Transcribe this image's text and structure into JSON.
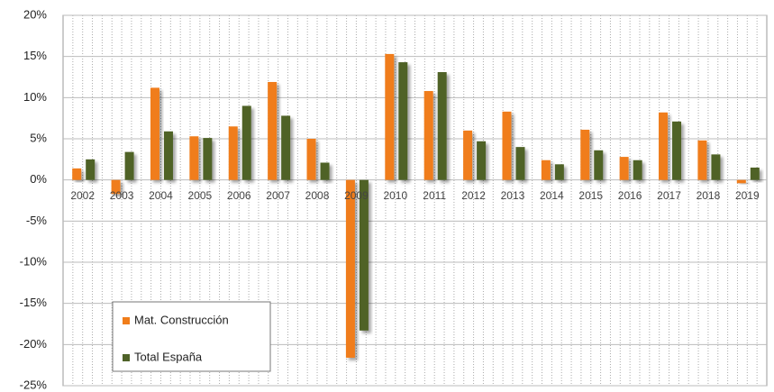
{
  "chart_data": {
    "type": "bar",
    "categories": [
      "2002",
      "2003",
      "2004",
      "2005",
      "2006",
      "2007",
      "2008",
      "2009",
      "2010",
      "2011",
      "2012",
      "2013",
      "2014",
      "2015",
      "2016",
      "2017",
      "2018",
      "2019"
    ],
    "series": [
      {
        "name": "Mat. Construcción",
        "color": "#f07d1a",
        "values": [
          1.4,
          -1.7,
          11.2,
          5.3,
          6.5,
          11.9,
          5.0,
          -21.6,
          15.3,
          10.8,
          6.0,
          8.3,
          2.4,
          6.1,
          2.8,
          8.2,
          4.8,
          -0.4
        ]
      },
      {
        "name": "Total España",
        "color": "#4f6228",
        "values": [
          2.5,
          3.4,
          5.9,
          5.1,
          9.0,
          7.8,
          2.1,
          -18.3,
          14.3,
          13.1,
          4.7,
          4.0,
          1.9,
          3.6,
          2.4,
          7.1,
          3.1,
          1.5
        ]
      }
    ],
    "ylim": [
      -25,
      20
    ],
    "yticks": [
      {
        "value": -25,
        "label": "-25%"
      },
      {
        "value": -20,
        "label": "-20%"
      },
      {
        "value": -15,
        "label": "-15%"
      },
      {
        "value": -10,
        "label": "-10%"
      },
      {
        "value": -5,
        "label": "-5%"
      },
      {
        "value": 0,
        "label": "0%"
      },
      {
        "value": 5,
        "label": "5%"
      },
      {
        "value": 10,
        "label": "10%"
      },
      {
        "value": 15,
        "label": "15%"
      },
      {
        "value": 20,
        "label": "20%"
      }
    ],
    "grid": true,
    "legend": "lower left"
  }
}
